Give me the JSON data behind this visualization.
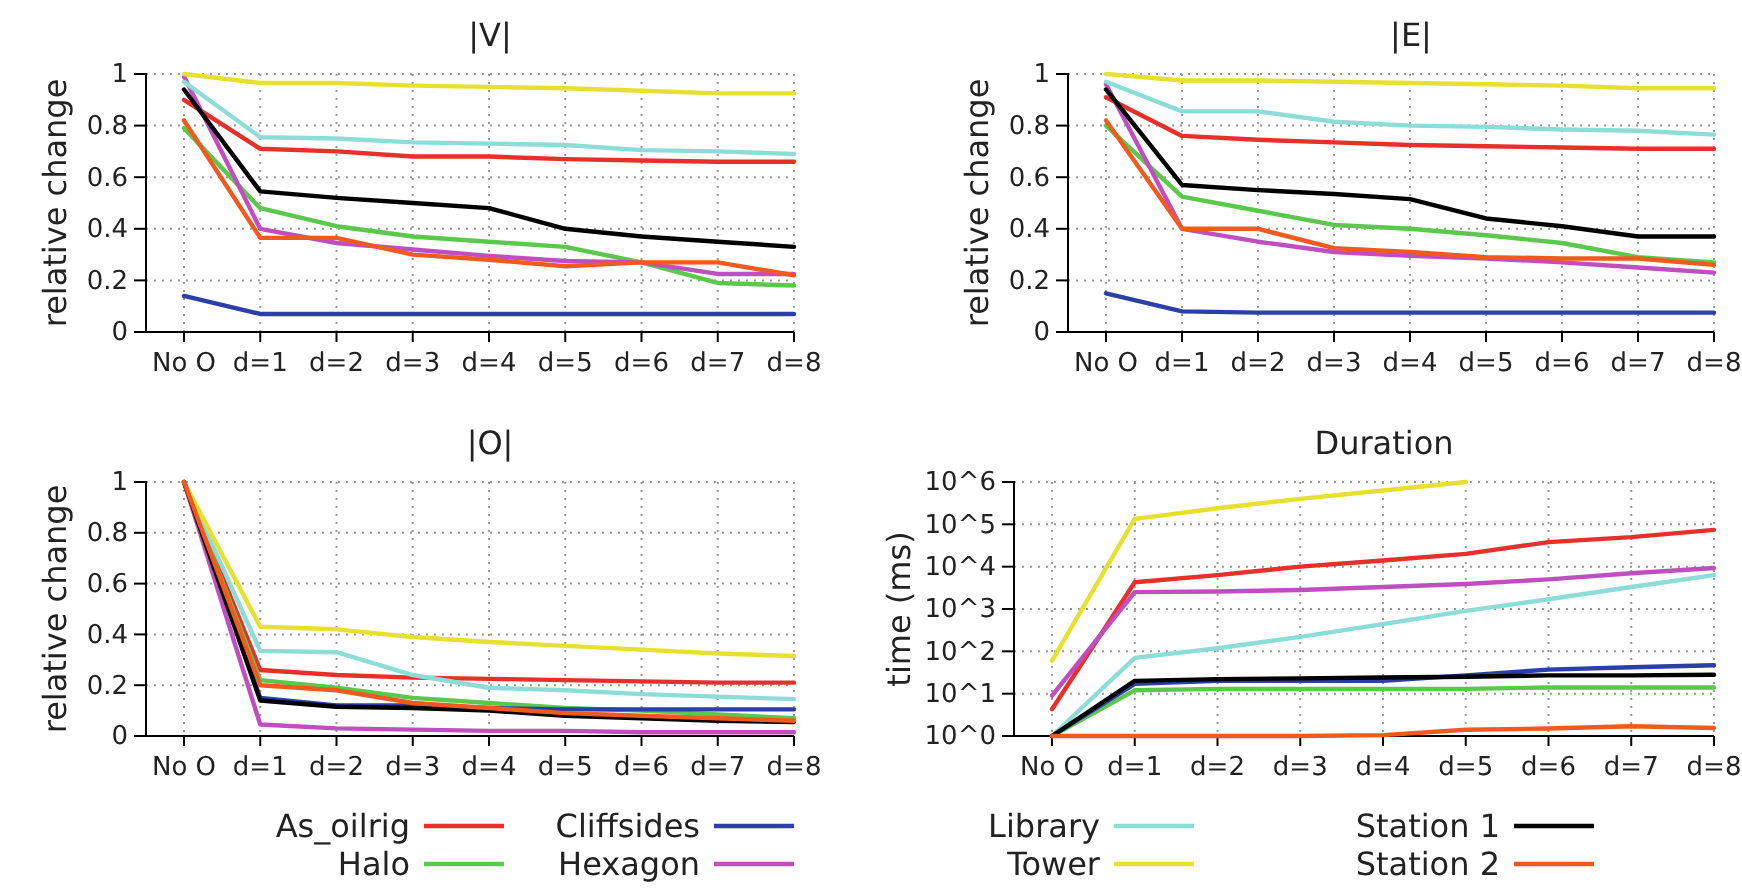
{
  "chart_data": [
    {
      "type": "line",
      "title": "|V|",
      "ylabel": "relative change",
      "categories": [
        "No O",
        "d=1",
        "d=2",
        "d=3",
        "d=4",
        "d=5",
        "d=6",
        "d=7",
        "d=8"
      ],
      "ylim": [
        0,
        1
      ],
      "yticks": [
        0,
        0.2,
        0.4,
        0.6,
        0.8,
        1
      ],
      "grid": true,
      "legend": "bottom",
      "series": [
        {
          "name": "As_oilrig",
          "color": "#e8302a",
          "values": [
            0.9,
            0.71,
            0.7,
            0.68,
            0.68,
            0.67,
            0.665,
            0.66,
            0.66
          ]
        },
        {
          "name": "Halo",
          "color": "#5ac84a",
          "values": [
            0.79,
            0.48,
            0.41,
            0.37,
            0.35,
            0.33,
            0.27,
            0.19,
            0.18
          ]
        },
        {
          "name": "Cliffsides",
          "color": "#2a3fa8",
          "values": [
            0.14,
            0.07,
            0.07,
            0.07,
            0.07,
            0.07,
            0.07,
            0.07,
            0.07
          ]
        },
        {
          "name": "Hexagon",
          "color": "#c04ec0",
          "values": [
            0.99,
            0.4,
            0.345,
            0.32,
            0.295,
            0.275,
            0.27,
            0.225,
            0.225
          ]
        },
        {
          "name": "Library",
          "color": "#8cddd8",
          "values": [
            0.97,
            0.755,
            0.75,
            0.735,
            0.73,
            0.725,
            0.705,
            0.7,
            0.69
          ]
        },
        {
          "name": "Tower",
          "color": "#e8e030",
          "values": [
            1,
            0.965,
            0.965,
            0.955,
            0.95,
            0.945,
            0.935,
            0.925,
            0.925
          ]
        },
        {
          "name": "Station 1",
          "color": "#000000",
          "values": [
            0.94,
            0.545,
            0.52,
            0.5,
            0.48,
            0.4,
            0.37,
            0.35,
            0.33
          ]
        },
        {
          "name": "Station 2",
          "color": "#f05a1e",
          "values": [
            0.82,
            0.365,
            0.365,
            0.3,
            0.28,
            0.255,
            0.27,
            0.27,
            0.22
          ]
        }
      ]
    },
    {
      "type": "line",
      "title": "|E|",
      "ylabel": "relative change",
      "categories": [
        "No O",
        "d=1",
        "d=2",
        "d=3",
        "d=4",
        "d=5",
        "d=6",
        "d=7",
        "d=8"
      ],
      "ylim": [
        0,
        1
      ],
      "yticks": [
        0,
        0.2,
        0.4,
        0.6,
        0.8,
        1
      ],
      "grid": true,
      "series": [
        {
          "color": "#e8302a",
          "values": [
            0.91,
            0.76,
            0.745,
            0.735,
            0.725,
            0.72,
            0.715,
            0.71,
            0.71
          ]
        },
        {
          "color": "#5ac84a",
          "values": [
            0.8,
            0.525,
            0.47,
            0.415,
            0.4,
            0.375,
            0.345,
            0.29,
            0.27
          ]
        },
        {
          "color": "#2a3fa8",
          "values": [
            0.15,
            0.08,
            0.075,
            0.075,
            0.075,
            0.075,
            0.075,
            0.075,
            0.075
          ]
        },
        {
          "color": "#c04ec0",
          "values": [
            0.96,
            0.4,
            0.35,
            0.31,
            0.295,
            0.285,
            0.27,
            0.25,
            0.23
          ]
        },
        {
          "color": "#8cddd8",
          "values": [
            0.97,
            0.855,
            0.855,
            0.815,
            0.8,
            0.795,
            0.785,
            0.78,
            0.765
          ]
        },
        {
          "color": "#e8e030",
          "values": [
            1,
            0.975,
            0.975,
            0.97,
            0.965,
            0.96,
            0.955,
            0.945,
            0.945
          ]
        },
        {
          "color": "#000000",
          "values": [
            0.94,
            0.57,
            0.55,
            0.535,
            0.515,
            0.44,
            0.41,
            0.37,
            0.37
          ]
        },
        {
          "color": "#f05a1e",
          "values": [
            0.82,
            0.4,
            0.4,
            0.325,
            0.31,
            0.29,
            0.285,
            0.285,
            0.26
          ]
        }
      ]
    },
    {
      "type": "line",
      "title": "|O|",
      "ylabel": "relative change",
      "categories": [
        "No O",
        "d=1",
        "d=2",
        "d=3",
        "d=4",
        "d=5",
        "d=6",
        "d=7",
        "d=8"
      ],
      "ylim": [
        0,
        1
      ],
      "yticks": [
        0,
        0.2,
        0.4,
        0.6,
        0.8,
        1
      ],
      "grid": true,
      "series": [
        {
          "color": "#e8302a",
          "values": [
            1,
            0.26,
            0.24,
            0.23,
            0.225,
            0.22,
            0.215,
            0.21,
            0.21
          ]
        },
        {
          "color": "#5ac84a",
          "values": [
            1,
            0.22,
            0.19,
            0.15,
            0.13,
            0.11,
            0.1,
            0.085,
            0.07
          ]
        },
        {
          "color": "#2a3fa8",
          "values": [
            1,
            0.15,
            0.12,
            0.12,
            0.11,
            0.105,
            0.105,
            0.105,
            0.105
          ]
        },
        {
          "color": "#c04ec0",
          "values": [
            1,
            0.045,
            0.03,
            0.025,
            0.02,
            0.02,
            0.015,
            0.015,
            0.015
          ]
        },
        {
          "color": "#8cddd8",
          "values": [
            1,
            0.335,
            0.33,
            0.24,
            0.19,
            0.18,
            0.165,
            0.155,
            0.145
          ]
        },
        {
          "color": "#e8e030",
          "values": [
            1,
            0.43,
            0.42,
            0.39,
            0.37,
            0.355,
            0.34,
            0.325,
            0.315
          ]
        },
        {
          "color": "#000000",
          "values": [
            1,
            0.14,
            0.115,
            0.11,
            0.1,
            0.08,
            0.07,
            0.06,
            0.055
          ]
        },
        {
          "color": "#f05a1e",
          "values": [
            1,
            0.2,
            0.18,
            0.13,
            0.11,
            0.09,
            0.08,
            0.07,
            0.06
          ]
        }
      ]
    },
    {
      "type": "line",
      "title": "Duration",
      "ylabel": "time (ms)",
      "categories": [
        "No O",
        "d=1",
        "d=2",
        "d=3",
        "d=4",
        "d=5",
        "d=6",
        "d=7",
        "d=8"
      ],
      "log": true,
      "ylim": [
        1,
        1000000
      ],
      "yticks": [
        {
          "value": 1,
          "label": "10^0"
        },
        {
          "value": 10,
          "label": "10^1"
        },
        {
          "value": 100,
          "label": "10^2"
        },
        {
          "value": 1000,
          "label": "10^3"
        },
        {
          "value": 10000,
          "label": "10^4"
        },
        {
          "value": 100000,
          "label": "10^5"
        },
        {
          "value": 1000000,
          "label": "10^6"
        }
      ],
      "grid": true,
      "series": [
        {
          "color": "#e8302a",
          "values": [
            4.3,
            4300,
            6300,
            10000,
            14000,
            20000,
            38000,
            50000,
            74000
          ]
        },
        {
          "color": "#5ac84a",
          "values": [
            1,
            12,
            13,
            13,
            13,
            13,
            14,
            14,
            14
          ]
        },
        {
          "color": "#2a3fa8",
          "values": [
            1,
            17,
            20,
            20,
            20,
            27,
            37,
            42,
            47
          ]
        },
        {
          "color": "#c04ec0",
          "values": [
            9,
            2500,
            2600,
            2800,
            3300,
            3900,
            5000,
            7000,
            9300
          ]
        },
        {
          "color": "#8cddd8",
          "values": [
            1,
            70,
            118,
            220,
            440,
            900,
            1700,
            3300,
            6300
          ]
        },
        {
          "color": "#e8e030",
          "values": [
            60,
            135000,
            240000,
            400000,
            630000,
            1000000,
            null,
            null,
            null
          ]
        },
        {
          "color": "#000000",
          "values": [
            1,
            20,
            22,
            23,
            24,
            25,
            27,
            27,
            28
          ]
        },
        {
          "color": "#f05a1e",
          "values": [
            1,
            1,
            1,
            1,
            1.05,
            1.4,
            1.5,
            1.7,
            1.55
          ]
        }
      ]
    }
  ]
}
